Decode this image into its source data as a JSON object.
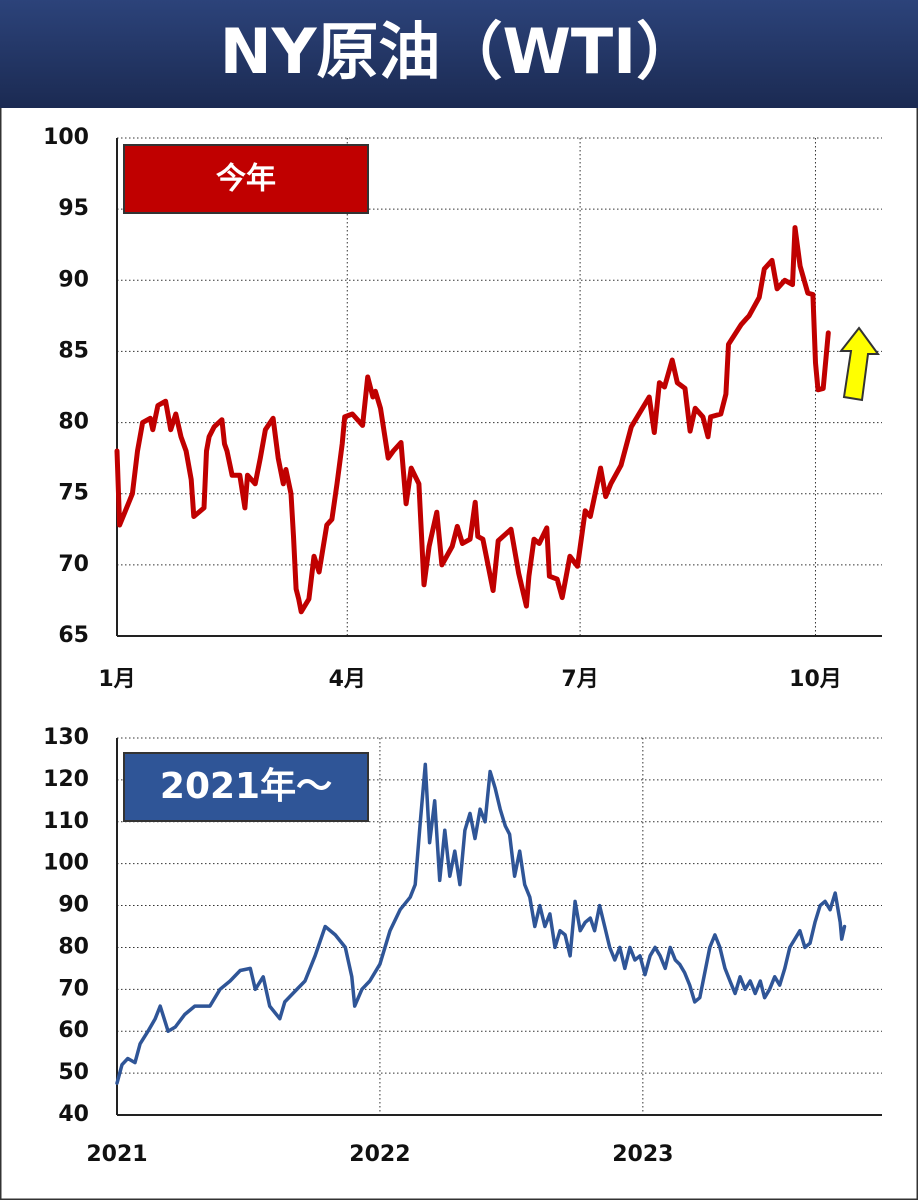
{
  "title": "NY原油（WTI）",
  "chart_data": [
    {
      "type": "line",
      "x": [
        0,
        1,
        6,
        8,
        10,
        13,
        14,
        16,
        19,
        21,
        23,
        25,
        27,
        29,
        30,
        34,
        35,
        36,
        38,
        41,
        42,
        43,
        45,
        48,
        50,
        51,
        54,
        56,
        58,
        61,
        63,
        65,
        66,
        68,
        69,
        70,
        71,
        72,
        75,
        77,
        79,
        82,
        84,
        86,
        88,
        89,
        92,
        96,
        98,
        100,
        101,
        103,
        106,
        108,
        111,
        113,
        115,
        118,
        120,
        122,
        125,
        127,
        131,
        133,
        135,
        138,
        140,
        141,
        143,
        147,
        149,
        154,
        157,
        160,
        161,
        163,
        165,
        168,
        169,
        172,
        174,
        177,
        180,
        183,
        185,
        189,
        191,
        193,
        197,
        201,
        208,
        210,
        212,
        214,
        217,
        219,
        222,
        224,
        226,
        229,
        231,
        232,
        236,
        238,
        239,
        244,
        246,
        247,
        251,
        253,
        256,
        258,
        261,
        264,
        265,
        267,
        270,
        272,
        273,
        274,
        276,
        278
      ],
      "series": [
        {
          "name": "今年",
          "color": "#c00000",
          "values": [
            78,
            72.8,
            75,
            78,
            80,
            80.3,
            79.5,
            81.2,
            81.5,
            79.5,
            80.6,
            79,
            78,
            76,
            73.4,
            74,
            78,
            79,
            79.7,
            80.2,
            78.5,
            78,
            76.3,
            76.3,
            74,
            76.3,
            75.7,
            77.5,
            79.5,
            80.3,
            77.5,
            75.7,
            76.7,
            75,
            72,
            68.3,
            67.6,
            66.7,
            67.6,
            70.6,
            69.5,
            72.8,
            73.2,
            75.7,
            78.5,
            80.4,
            80.6,
            79.8,
            83.2,
            81.8,
            82.2,
            81,
            77.5,
            78,
            78.6,
            74.3,
            76.8,
            75.7,
            68.6,
            71.3,
            73.7,
            70,
            71.3,
            72.7,
            71.5,
            71.8,
            74.4,
            72,
            71.8,
            68.2,
            71.7,
            72.5,
            69.4,
            67.1,
            69.2,
            71.8,
            71.5,
            72.6,
            69.2,
            69,
            67.7,
            70.6,
            69.9,
            73.8,
            73.4,
            76.8,
            74.8,
            75.7,
            77,
            79.7,
            81.8,
            79.3,
            82.8,
            82.5,
            84.4,
            82.8,
            82.4,
            79.4,
            81,
            80.4,
            79,
            80.4,
            80.6,
            82,
            85.5,
            86.9,
            87.3,
            87.5,
            88.8,
            90.8,
            91.4,
            89.4,
            90,
            89.7,
            93.7,
            91,
            89.1,
            89,
            84.2,
            82.3,
            82.4,
            86.3
          ]
        }
      ],
      "xlim": [
        0,
        299
      ],
      "xticks": [
        {
          "value": 0,
          "label": "1月"
        },
        {
          "value": 90,
          "label": "4月"
        },
        {
          "value": 181,
          "label": "7月"
        },
        {
          "value": 273,
          "label": "10月"
        }
      ],
      "ylim": [
        65,
        100
      ],
      "yticks": [
        65,
        70,
        75,
        80,
        85,
        90,
        95,
        100
      ],
      "grid": true
    },
    {
      "type": "line",
      "x": [
        0,
        7,
        15,
        25,
        32,
        43,
        53,
        60,
        71,
        81,
        94,
        108,
        129,
        143,
        157,
        171,
        185,
        192,
        203,
        212,
        226,
        233,
        247,
        261,
        275,
        289,
        303,
        317,
        326,
        330,
        340,
        351,
        365,
        379,
        393,
        407,
        414,
        421,
        428,
        434,
        441,
        448,
        455,
        462,
        469,
        476,
        483,
        490,
        497,
        504,
        511,
        518,
        525,
        532,
        539,
        545,
        552,
        559,
        566,
        573,
        580,
        587,
        594,
        601,
        608,
        615,
        622,
        629,
        636,
        643,
        650,
        657,
        663,
        670,
        677,
        684,
        691,
        698,
        705,
        712,
        719,
        726,
        733,
        740,
        747,
        754,
        761,
        768,
        775,
        781,
        788,
        795,
        802,
        809,
        816,
        823,
        830,
        837,
        844,
        851,
        858,
        865,
        872,
        879,
        886,
        893,
        899,
        906,
        913,
        920,
        927,
        934,
        941,
        948,
        955,
        962,
        969,
        976,
        983,
        990,
        997,
        1004,
        1006,
        1010
      ],
      "series": [
        {
          "name": "2021年～",
          "color": "#2f5597",
          "values": [
            47.6,
            52,
            53.5,
            52.5,
            57,
            60,
            63,
            66,
            60,
            61,
            64,
            66,
            66,
            70,
            72,
            74.5,
            75,
            70,
            73,
            66,
            63,
            67,
            69.5,
            72,
            78,
            85,
            83,
            80,
            73,
            66,
            70,
            72,
            76,
            84,
            89,
            92,
            95,
            110,
            123.7,
            105,
            115,
            96,
            108,
            97,
            103,
            95,
            108,
            112,
            106,
            113,
            110,
            122,
            118,
            113,
            109,
            107,
            97,
            103,
            95,
            92,
            85,
            90,
            85,
            88,
            80,
            84,
            83,
            78,
            91,
            84,
            86,
            87,
            84,
            90,
            85,
            80,
            77,
            80,
            75,
            80,
            77,
            78,
            73.5,
            78,
            80,
            78,
            75,
            80,
            77,
            76,
            74,
            71,
            67,
            68,
            74,
            80,
            83,
            80,
            75,
            72,
            69,
            73,
            70,
            72,
            69,
            72,
            68,
            70,
            73,
            71,
            75,
            80,
            82,
            84,
            80,
            81,
            86,
            90,
            91,
            89,
            93,
            86,
            82,
            85
          ]
        }
      ],
      "xlim": [
        0,
        1062
      ],
      "xticks": [
        {
          "value": 0,
          "label": "2021"
        },
        {
          "value": 365,
          "label": "2022"
        },
        {
          "value": 730,
          "label": "2023"
        }
      ],
      "ylim": [
        40,
        130
      ],
      "yticks": [
        40,
        50,
        60,
        70,
        80,
        90,
        100,
        110,
        120,
        130
      ],
      "grid": true
    }
  ]
}
